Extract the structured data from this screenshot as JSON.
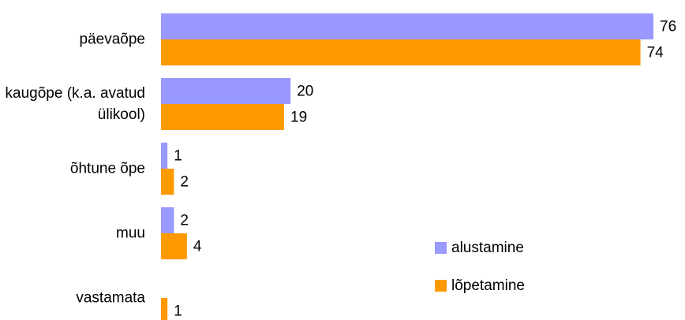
{
  "chart_data": {
    "type": "bar",
    "orientation": "horizontal",
    "categories": [
      "päevaõpe",
      "kaugõpe (k.a. avatud ülikool)",
      "õhtune õpe",
      "muu",
      "vastamata"
    ],
    "series": [
      {
        "name": "alustamine",
        "color": "#9999ff",
        "values": [
          76,
          20,
          1,
          2,
          null
        ]
      },
      {
        "name": "lõpetamine",
        "color": "#ff9900",
        "values": [
          74,
          19,
          2,
          4,
          1
        ]
      }
    ],
    "legend": "right"
  }
}
